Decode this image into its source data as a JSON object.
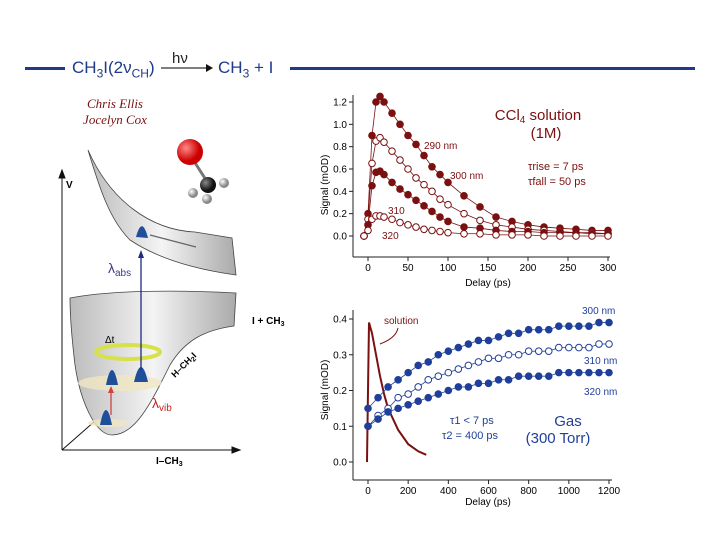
{
  "header": {
    "reactant": "CH3I(2νCH)",
    "reactant_main": "CH",
    "reactant_sub1": "3",
    "reactant_mid": "I(2ν",
    "reactant_sub2": "CH",
    "reactant_end": ")",
    "light": "hν",
    "product_main": "CH",
    "product_sub": "3",
    "product_rest": " + I",
    "line_color": "#1f3a8a"
  },
  "authors": [
    "Chris Ellis",
    "Jocelyn Cox"
  ],
  "diagram": {
    "v_axis_label": "V",
    "x_axis_label": "I–CH",
    "x_axis_sub": "3",
    "diag_axis_label": "H–CH",
    "diag_axis_sub": "2",
    "diag_axis_end": "I",
    "asymptote_label": "I + CH",
    "asymptote_sub": "3",
    "abs_label": "λ",
    "abs_sub": "abs",
    "vib_label": "λ",
    "vib_sub": "vib",
    "delta_t": "Δt",
    "molecule_icon": "ch3i-molecule-icon"
  },
  "chart_data": [
    {
      "type": "scatter",
      "title": "CCl4 solution (1M)",
      "title_line1": "CCl",
      "title_sub": "4",
      "title_rest": " solution",
      "title_line2": "(1M)",
      "tau_rise": "τrise = 7 ps",
      "tau_fall": "τfall = 50 ps",
      "xlabel": "Delay (ps)",
      "ylabel": "Signal (mOD)",
      "xlim": [
        -20,
        305
      ],
      "ylim": [
        -0.1,
        1.3
      ],
      "xticks": [
        "0",
        "50",
        "100",
        "150",
        "200",
        "250",
        "300"
      ],
      "yticks": [
        "0.0",
        "0.2",
        "0.4",
        "0.6",
        "0.8",
        "1.0",
        "1.2"
      ],
      "color": "#7a1010",
      "x": [
        -5,
        0,
        5,
        10,
        15,
        20,
        30,
        40,
        50,
        60,
        70,
        80,
        90,
        100,
        120,
        140,
        160,
        180,
        200,
        220,
        240,
        260,
        280,
        300
      ],
      "series": [
        {
          "name": "290 nm",
          "filled": true,
          "values": [
            0,
            0.2,
            0.9,
            1.2,
            1.25,
            1.2,
            1.1,
            1.0,
            0.9,
            0.82,
            0.72,
            0.62,
            0.55,
            0.48,
            0.36,
            0.26,
            0.17,
            0.13,
            0.1,
            0.08,
            0.07,
            0.06,
            0.05,
            0.05
          ]
        },
        {
          "name": "300 nm",
          "filled": false,
          "values": [
            0,
            0.15,
            0.65,
            0.85,
            0.88,
            0.84,
            0.76,
            0.68,
            0.6,
            0.52,
            0.46,
            0.4,
            0.33,
            0.28,
            0.2,
            0.14,
            0.1,
            0.08,
            0.06,
            0.05,
            0.04,
            0.03,
            0.03,
            0.02
          ]
        },
        {
          "name": "310",
          "filled": true,
          "values": [
            0,
            0.1,
            0.45,
            0.57,
            0.58,
            0.55,
            0.48,
            0.42,
            0.37,
            0.32,
            0.27,
            0.22,
            0.17,
            0.13,
            0.08,
            0.07,
            0.05,
            0.04,
            0.04,
            0.03,
            0.03,
            0.03,
            0.02,
            0.02
          ]
        },
        {
          "name": "320",
          "filled": false,
          "values": [
            0,
            0.05,
            0.15,
            0.18,
            0.18,
            0.17,
            0.15,
            0.12,
            0.1,
            0.08,
            0.06,
            0.05,
            0.04,
            0.03,
            0.02,
            0.02,
            0.01,
            0.01,
            0.01,
            0,
            0,
            0,
            0,
            0
          ]
        }
      ]
    },
    {
      "type": "scatter",
      "title": "Gas (300 Torr)",
      "title_line1": "Gas",
      "title_line2": "(300 Torr)",
      "tau_1": "τ1 < 7 ps",
      "tau_2": "τ2 = 400 ps",
      "xlabel": "Delay (ps)",
      "ylabel": "Signal (mOD)",
      "xlim": [
        -60,
        1220
      ],
      "ylim": [
        -0.04,
        0.41
      ],
      "xticks": [
        "0",
        "200",
        "400",
        "600",
        "800",
        "1000",
        "1200"
      ],
      "yticks": [
        "0.0",
        "0.1",
        "0.2",
        "0.3",
        "0.4"
      ],
      "color": "#1f3f9a",
      "solution_color": "#7a1010",
      "x": [
        0,
        50,
        100,
        150,
        200,
        250,
        300,
        350,
        400,
        450,
        500,
        550,
        600,
        650,
        700,
        750,
        800,
        850,
        900,
        950,
        1000,
        1050,
        1100,
        1150,
        1200
      ],
      "series": [
        {
          "name": "300 nm",
          "filled": true,
          "values": [
            0.15,
            0.18,
            0.21,
            0.23,
            0.25,
            0.27,
            0.28,
            0.3,
            0.31,
            0.32,
            0.33,
            0.34,
            0.34,
            0.35,
            0.36,
            0.36,
            0.37,
            0.37,
            0.37,
            0.38,
            0.38,
            0.38,
            0.38,
            0.39,
            0.39
          ]
        },
        {
          "name": "310 nm",
          "filled": false,
          "values": [
            0.1,
            0.13,
            0.15,
            0.18,
            0.19,
            0.21,
            0.23,
            0.24,
            0.25,
            0.26,
            0.27,
            0.28,
            0.29,
            0.29,
            0.3,
            0.3,
            0.31,
            0.31,
            0.31,
            0.32,
            0.32,
            0.32,
            0.32,
            0.33,
            0.33
          ]
        },
        {
          "name": "320 nm",
          "filled": true,
          "values": [
            0.1,
            0.12,
            0.14,
            0.15,
            0.16,
            0.17,
            0.18,
            0.19,
            0.2,
            0.21,
            0.21,
            0.22,
            0.22,
            0.23,
            0.23,
            0.24,
            0.24,
            0.24,
            0.24,
            0.25,
            0.25,
            0.25,
            0.25,
            0.25,
            0.25
          ]
        }
      ],
      "solution": {
        "name": "solution",
        "x": [
          -5,
          0,
          5,
          10,
          20,
          40,
          60,
          80,
          100,
          150,
          200,
          250,
          290
        ],
        "values": [
          0,
          0.2,
          0.39,
          0.38,
          0.36,
          0.3,
          0.24,
          0.19,
          0.15,
          0.09,
          0.05,
          0.03,
          0.02
        ]
      }
    }
  ]
}
